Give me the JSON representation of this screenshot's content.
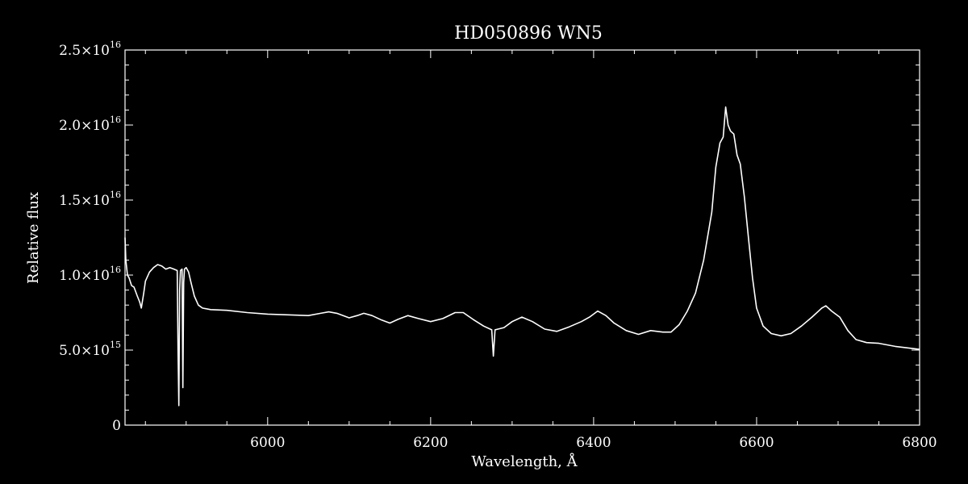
{
  "chart_data": {
    "type": "line",
    "title": "HD050896   WN5",
    "xlabel": "Wavelength, Å",
    "ylabel": "Relative flux",
    "xlim": [
      5825,
      6800
    ],
    "ylim": [
      0,
      2.5e+16
    ],
    "grid": false,
    "x_ticks": [
      {
        "value": 6000,
        "label": "6000"
      },
      {
        "value": 6200,
        "label": "6200"
      },
      {
        "value": 6400,
        "label": "6400"
      },
      {
        "value": 6600,
        "label": "6600"
      },
      {
        "value": 6800,
        "label": "6800"
      }
    ],
    "y_ticks": [
      {
        "value": 0,
        "mant": "0",
        "exp": ""
      },
      {
        "value": 5000000000000000.0,
        "mant": "5.0×10",
        "exp": "15"
      },
      {
        "value": 1e+16,
        "mant": "1.0×10",
        "exp": "16"
      },
      {
        "value": 1.5e+16,
        "mant": "1.5×10",
        "exp": "16"
      },
      {
        "value": 2e+16,
        "mant": "2.0×10",
        "exp": "16"
      },
      {
        "value": 2.5e+16,
        "mant": "2.5×10",
        "exp": "16"
      }
    ],
    "series": [
      {
        "color": "#ffffff",
        "points": [
          [
            5825,
            1.25e+16
          ],
          [
            5826,
            1.1e+16
          ],
          [
            5828,
            1e+16
          ],
          [
            5830,
            9800000000000000.0
          ],
          [
            5833,
            9300000000000000.0
          ],
          [
            5836,
            9200000000000000.0
          ],
          [
            5840,
            8600000000000000.0
          ],
          [
            5843,
            8200000000000000.0
          ],
          [
            5845,
            7800000000000000.0
          ],
          [
            5848,
            8800000000000000.0
          ],
          [
            5850,
            9600000000000000.0
          ],
          [
            5855,
            1.02e+16
          ],
          [
            5860,
            1.05e+16
          ],
          [
            5865,
            1.07e+16
          ],
          [
            5870,
            1.06e+16
          ],
          [
            5875,
            1.04e+16
          ],
          [
            5880,
            1.05e+16
          ],
          [
            5885,
            1.04e+16
          ],
          [
            5889,
            1.03e+16
          ],
          [
            5890,
            5000000000000000.0
          ],
          [
            5891,
            1300000000000000.0
          ],
          [
            5892,
            9000000000000000.0
          ],
          [
            5893,
            1.03e+16
          ],
          [
            5895,
            1.04e+16
          ],
          [
            5896,
            2500000000000000.0
          ],
          [
            5897,
            9500000000000000.0
          ],
          [
            5898,
            1.04e+16
          ],
          [
            5900,
            1.05e+16
          ],
          [
            5903,
            1.02e+16
          ],
          [
            5906,
            9500000000000000.0
          ],
          [
            5910,
            8600000000000000.0
          ],
          [
            5915,
            8000000000000000.0
          ],
          [
            5920,
            7800000000000000.0
          ],
          [
            5930,
            7700000000000000.0
          ],
          [
            5950,
            7650000000000000.0
          ],
          [
            5975,
            7500000000000000.0
          ],
          [
            6000,
            7400000000000000.0
          ],
          [
            6025,
            7350000000000000.0
          ],
          [
            6050,
            7300000000000000.0
          ],
          [
            6065,
            7450000000000000.0
          ],
          [
            6075,
            7550000000000000.0
          ],
          [
            6085,
            7450000000000000.0
          ],
          [
            6100,
            7150000000000000.0
          ],
          [
            6110,
            7300000000000000.0
          ],
          [
            6118,
            7450000000000000.0
          ],
          [
            6128,
            7300000000000000.0
          ],
          [
            6140,
            7000000000000000.0
          ],
          [
            6150,
            6800000000000000.0
          ],
          [
            6160,
            7050000000000000.0
          ],
          [
            6172,
            7300000000000000.0
          ],
          [
            6185,
            7100000000000000.0
          ],
          [
            6200,
            6900000000000000.0
          ],
          [
            6215,
            7100000000000000.0
          ],
          [
            6230,
            7500000000000000.0
          ],
          [
            6240,
            7500000000000000.0
          ],
          [
            6252,
            7050000000000000.0
          ],
          [
            6265,
            6600000000000000.0
          ],
          [
            6275,
            6350000000000000.0
          ],
          [
            6277,
            4600000000000000.0
          ],
          [
            6279,
            6350000000000000.0
          ],
          [
            6290,
            6500000000000000.0
          ],
          [
            6300,
            6900000000000000.0
          ],
          [
            6312,
            7200000000000000.0
          ],
          [
            6325,
            6900000000000000.0
          ],
          [
            6340,
            6400000000000000.0
          ],
          [
            6355,
            6250000000000000.0
          ],
          [
            6370,
            6550000000000000.0
          ],
          [
            6385,
            6900000000000000.0
          ],
          [
            6395,
            7200000000000000.0
          ],
          [
            6405,
            7600000000000000.0
          ],
          [
            6415,
            7300000000000000.0
          ],
          [
            6425,
            6800000000000000.0
          ],
          [
            6440,
            6300000000000000.0
          ],
          [
            6455,
            6050000000000000.0
          ],
          [
            6470,
            6300000000000000.0
          ],
          [
            6485,
            6200000000000000.0
          ],
          [
            6495,
            6200000000000000.0
          ],
          [
            6505,
            6700000000000000.0
          ],
          [
            6515,
            7600000000000000.0
          ],
          [
            6525,
            8800000000000000.0
          ],
          [
            6535,
            1.1e+16
          ],
          [
            6545,
            1.42e+16
          ],
          [
            6550,
            1.72e+16
          ],
          [
            6555,
            1.88e+16
          ],
          [
            6559,
            1.92e+16
          ],
          [
            6562,
            2.12e+16
          ],
          [
            6565,
            2e+16
          ],
          [
            6568,
            1.96e+16
          ],
          [
            6572,
            1.94e+16
          ],
          [
            6576,
            1.8e+16
          ],
          [
            6580,
            1.74e+16
          ],
          [
            6585,
            1.52e+16
          ],
          [
            6590,
            1.25e+16
          ],
          [
            6595,
            9800000000000000.0
          ],
          [
            6600,
            7800000000000000.0
          ],
          [
            6608,
            6600000000000000.0
          ],
          [
            6618,
            6100000000000000.0
          ],
          [
            6630,
            5950000000000000.0
          ],
          [
            6642,
            6100000000000000.0
          ],
          [
            6655,
            6600000000000000.0
          ],
          [
            6668,
            7200000000000000.0
          ],
          [
            6680,
            7800000000000000.0
          ],
          [
            6685,
            7950000000000000.0
          ],
          [
            6692,
            7600000000000000.0
          ],
          [
            6702,
            7200000000000000.0
          ],
          [
            6712,
            6300000000000000.0
          ],
          [
            6722,
            5700000000000000.0
          ],
          [
            6735,
            5500000000000000.0
          ],
          [
            6750,
            5450000000000000.0
          ],
          [
            6770,
            5250000000000000.0
          ],
          [
            6800,
            5050000000000000.0
          ]
        ]
      }
    ]
  }
}
